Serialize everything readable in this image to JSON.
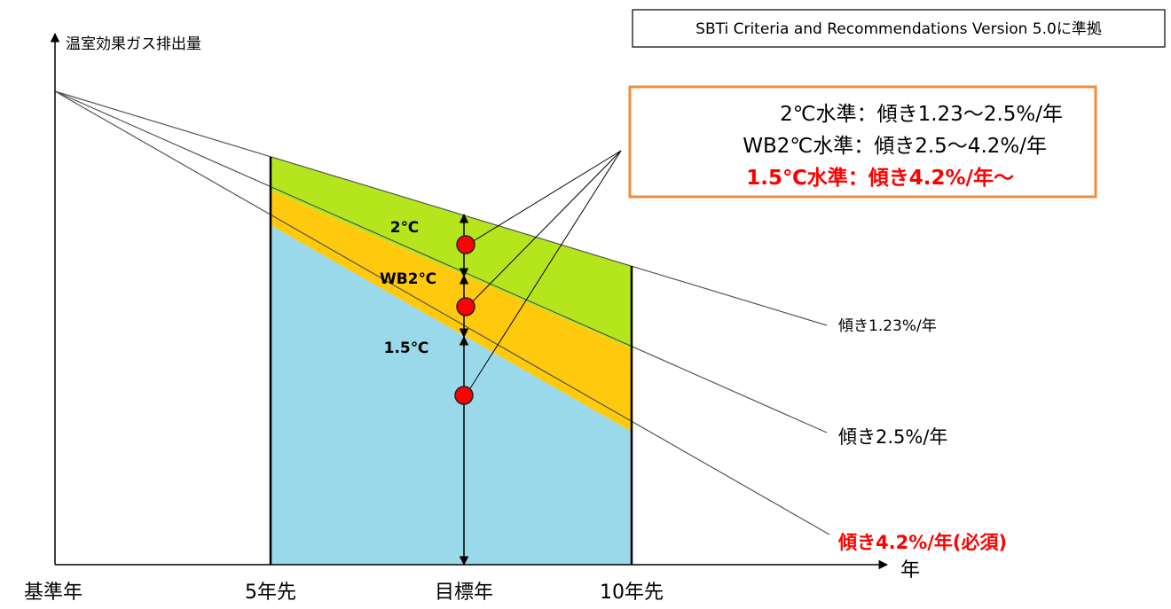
{
  "reference_note": "SBTi Criteria and Recommendations Version 5.0に準拠",
  "y_axis_label": "温室効果ガス排出量",
  "x_axis_label": "年",
  "x_ticks": [
    "基準年",
    "5年先",
    "目標年",
    "10年先"
  ],
  "band_labels": {
    "two": "2℃",
    "wb2": "WB2℃",
    "one_five": "1.5℃"
  },
  "legend": {
    "line1": "2℃水準：傾き1.23～2.5%/年",
    "line2": "WB2℃水準：傾き2.5～4.2%/年",
    "line3": "1.5℃水準：傾き4.2%/年～"
  },
  "slopes": {
    "s1": "傾き1.23%/年",
    "s2": "傾き2.5%/年",
    "s3": "傾き4.2%/年(必須)"
  },
  "colors": {
    "green": "#b5e61d",
    "yellow": "#ffc90e",
    "blue": "#99d9ea",
    "accent_red": "#ff0000",
    "legend_border": "#f08c3c"
  }
}
